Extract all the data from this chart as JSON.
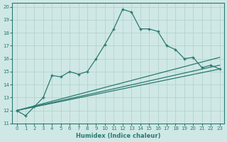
{
  "xlabel": "Humidex (Indice chaleur)",
  "ylabel": "",
  "xlim": [
    -0.5,
    23.5
  ],
  "ylim": [
    11,
    20.3
  ],
  "yticks": [
    11,
    12,
    13,
    14,
    15,
    16,
    17,
    18,
    19,
    20
  ],
  "xticks": [
    0,
    1,
    2,
    3,
    4,
    5,
    6,
    7,
    8,
    9,
    10,
    11,
    12,
    13,
    14,
    15,
    16,
    17,
    18,
    19,
    20,
    21,
    22,
    23
  ],
  "bg_color": "#cfe8e5",
  "grid_color": "#aecfcc",
  "line_color": "#2a7a70",
  "main_x": [
    0,
    1,
    2,
    3,
    4,
    5,
    6,
    7,
    8,
    9,
    10,
    11,
    12,
    13,
    14,
    15,
    16,
    17,
    18,
    19,
    20,
    21,
    22,
    23
  ],
  "main_y": [
    12.0,
    11.6,
    12.3,
    13.0,
    14.7,
    14.6,
    15.0,
    14.8,
    15.0,
    16.0,
    17.1,
    18.3,
    19.8,
    19.6,
    18.3,
    18.3,
    18.1,
    17.0,
    16.7,
    16.0,
    16.1,
    15.3,
    15.5,
    15.2
  ],
  "reg_lines": [
    {
      "x0": 0,
      "y0": 12.0,
      "x1": 23,
      "y1": 15.2
    },
    {
      "x0": 0,
      "y0": 12.0,
      "x1": 23,
      "y1": 15.5
    },
    {
      "x0": 0,
      "y0": 12.0,
      "x1": 23,
      "y1": 16.1
    }
  ]
}
